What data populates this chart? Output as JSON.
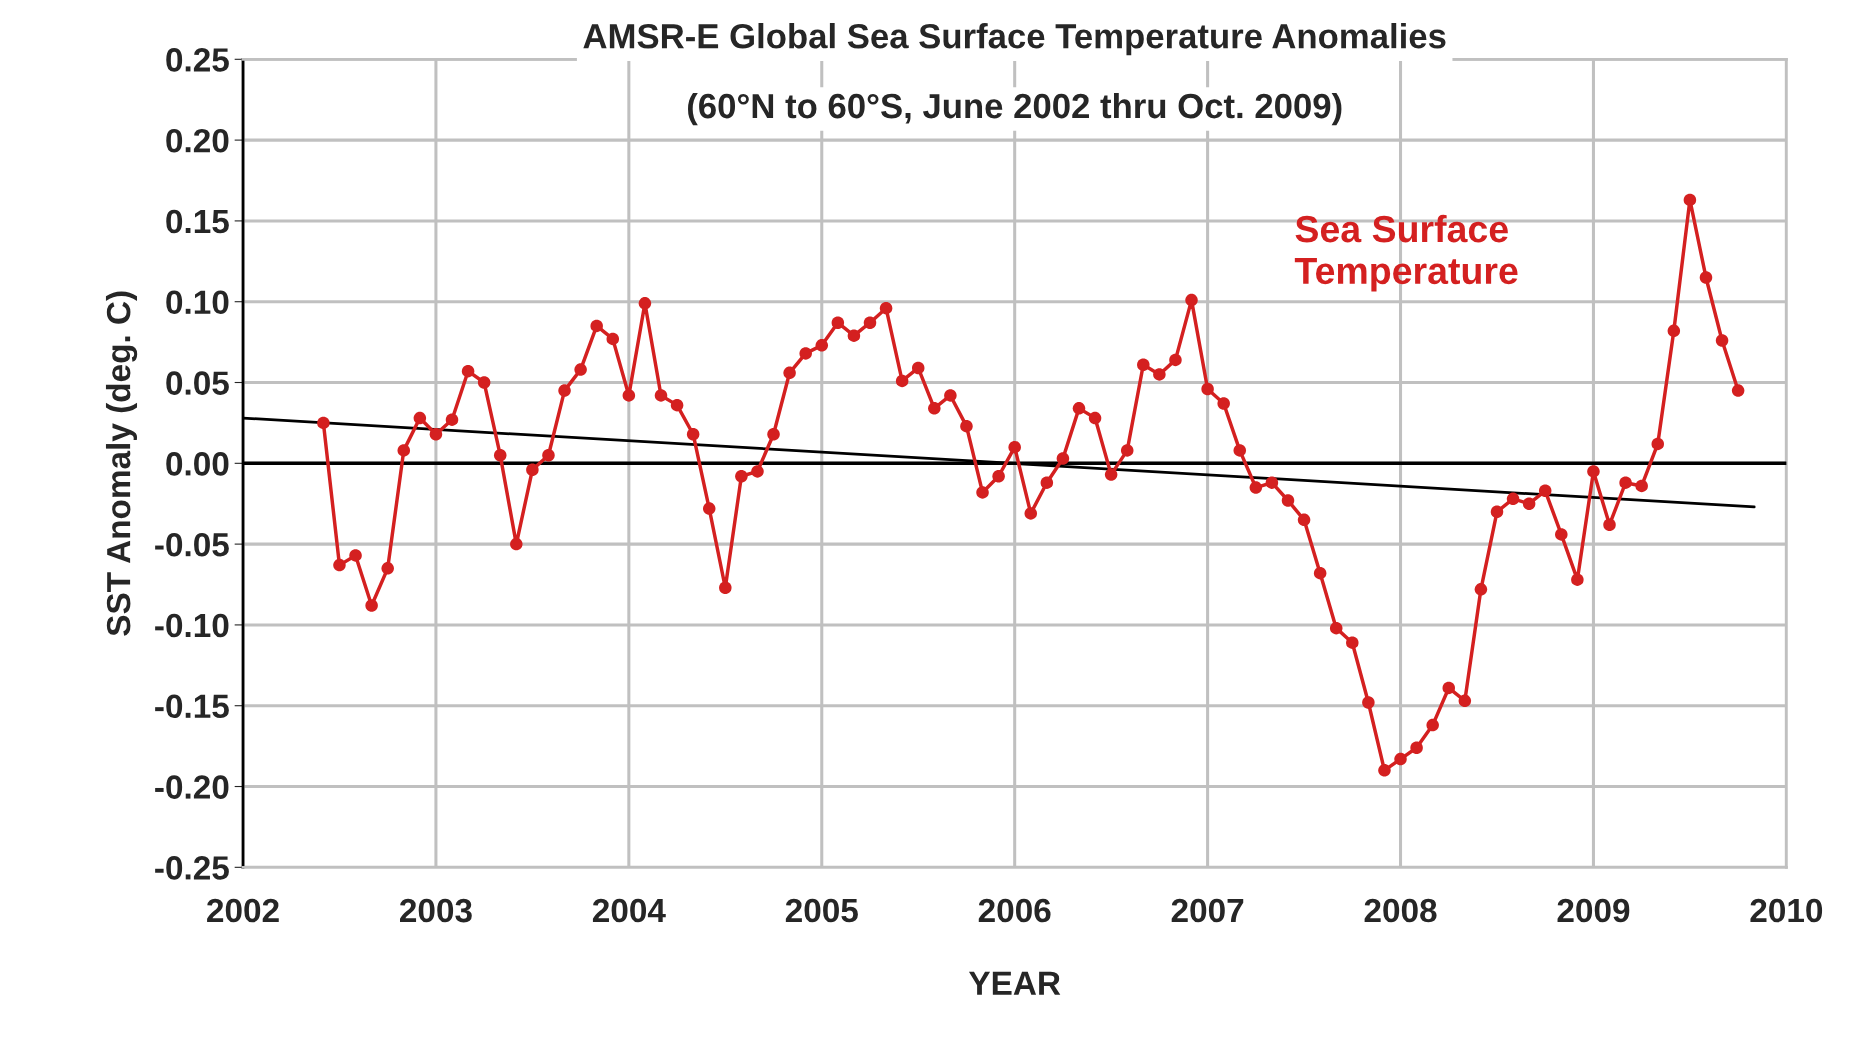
{
  "chart_data": {
    "type": "line",
    "title": "AMSR-E Global Sea Surface Temperature Anomalies",
    "subtitle": "(60°N to 60°S, June 2002 thru Oct. 2009)",
    "xlabel": "YEAR",
    "ylabel": "SST Anomaly (deg. C)",
    "x": [
      "2002-06",
      "2002-07",
      "2002-08",
      "2002-09",
      "2002-10",
      "2002-11",
      "2002-12",
      "2003-01",
      "2003-02",
      "2003-03",
      "2003-04",
      "2003-05",
      "2003-06",
      "2003-07",
      "2003-08",
      "2003-09",
      "2003-10",
      "2003-11",
      "2003-12",
      "2004-01",
      "2004-02",
      "2004-03",
      "2004-04",
      "2004-05",
      "2004-06",
      "2004-07",
      "2004-08",
      "2004-09",
      "2004-10",
      "2004-11",
      "2004-12",
      "2005-01",
      "2005-02",
      "2005-03",
      "2005-04",
      "2005-05",
      "2005-06",
      "2005-07",
      "2005-08",
      "2005-09",
      "2005-10",
      "2005-11",
      "2005-12",
      "2006-01",
      "2006-02",
      "2006-03",
      "2006-04",
      "2006-05",
      "2006-06",
      "2006-07",
      "2006-08",
      "2006-09",
      "2006-10",
      "2006-11",
      "2006-12",
      "2007-01",
      "2007-02",
      "2007-03",
      "2007-04",
      "2007-05",
      "2007-06",
      "2007-07",
      "2007-08",
      "2007-09",
      "2007-10",
      "2007-11",
      "2007-12",
      "2008-01",
      "2008-02",
      "2008-03",
      "2008-04",
      "2008-05",
      "2008-06",
      "2008-07",
      "2008-08",
      "2008-09",
      "2008-10",
      "2008-11",
      "2008-12",
      "2009-01",
      "2009-02",
      "2009-03",
      "2009-04",
      "2009-05",
      "2009-06",
      "2009-07",
      "2009-08",
      "2009-09",
      "2009-10"
    ],
    "series": [
      {
        "name": "Sea Surface\nTemperature",
        "color": "#d42020",
        "marker": "circle",
        "values": [
          0.025,
          -0.063,
          -0.057,
          -0.088,
          -0.065,
          0.008,
          0.028,
          0.018,
          0.027,
          0.057,
          0.05,
          0.005,
          -0.05,
          -0.004,
          0.005,
          0.045,
          0.058,
          0.085,
          0.077,
          0.042,
          0.099,
          0.042,
          0.036,
          0.018,
          -0.028,
          -0.077,
          -0.008,
          -0.005,
          0.018,
          0.056,
          0.068,
          0.073,
          0.087,
          0.079,
          0.087,
          0.096,
          0.051,
          0.059,
          0.034,
          0.042,
          0.023,
          -0.018,
          -0.008,
          0.01,
          -0.031,
          -0.012,
          0.003,
          0.034,
          0.028,
          -0.007,
          0.008,
          0.061,
          0.055,
          0.064,
          0.101,
          0.046,
          0.037,
          0.008,
          -0.015,
          -0.012,
          -0.023,
          -0.035,
          -0.068,
          -0.102,
          -0.111,
          -0.148,
          -0.19,
          -0.183,
          -0.176,
          -0.162,
          -0.139,
          -0.147,
          -0.078,
          -0.03,
          -0.022,
          -0.025,
          -0.017,
          -0.044,
          -0.072,
          -0.005,
          -0.038,
          -0.012,
          -0.014,
          0.012,
          0.082,
          0.163,
          0.115,
          0.076,
          0.045
        ]
      },
      {
        "type": "line",
        "color": "#000000",
        "marker": "none",
        "x": [
          "2002-01",
          "2009-11"
        ],
        "values": [
          0.028,
          -0.027
        ]
      }
    ],
    "ref_lines": [
      {
        "axis": "y",
        "value": 0,
        "color": "#000000"
      }
    ],
    "xlim": [
      "2002",
      "2010"
    ],
    "xticks": [
      "2002",
      "2003",
      "2004",
      "2005",
      "2006",
      "2007",
      "2008",
      "2009",
      "2010"
    ],
    "ylim": [
      -0.25,
      0.25
    ],
    "yticks": [
      {
        "value": -0.25,
        "label": "-0.25"
      },
      {
        "value": -0.2,
        "label": "-0.20"
      },
      {
        "value": -0.15,
        "label": "-0.15"
      },
      {
        "value": -0.1,
        "label": "-0.10"
      },
      {
        "value": -0.05,
        "label": "-0.05"
      },
      {
        "value": 0,
        "label": "0.00"
      },
      {
        "value": 0.05,
        "label": "0.05"
      },
      {
        "value": 0.1,
        "label": "0.10"
      },
      {
        "value": 0.15,
        "label": "0.15"
      },
      {
        "value": 0.2,
        "label": "0.20"
      },
      {
        "value": 0.25,
        "label": "0.25"
      }
    ],
    "grid": true,
    "legend": false
  }
}
